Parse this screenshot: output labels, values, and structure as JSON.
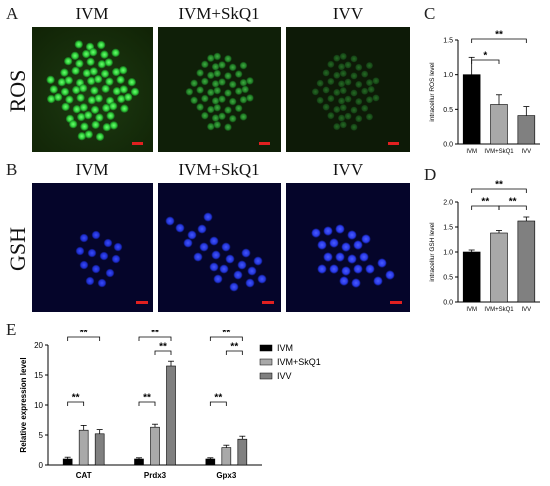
{
  "panels": {
    "A": "A",
    "B": "B",
    "C": "C",
    "D": "D",
    "E": "E"
  },
  "columns": [
    "IVM",
    "IVM+SkQ1",
    "IVV"
  ],
  "rows": [
    "ROS",
    "GSH"
  ],
  "colors": {
    "ros_green": "#2fcf3a",
    "gsh_blue": "#2838e8",
    "scale_bar": "#e02020",
    "bar_black": "#000000",
    "bar_light": "#a9a9a9",
    "bar_mid": "#808080"
  },
  "chart_data": [
    {
      "type": "bar",
      "panel": "C",
      "categories": [
        "IVM",
        "IVM+SkQ1",
        "IVV"
      ],
      "values": [
        1.0,
        0.57,
        0.41
      ],
      "errors": [
        0.25,
        0.14,
        0.13
      ],
      "ylabel": "intracellur ROS level",
      "ylim": [
        0,
        1.5
      ],
      "yticks": [
        "0.0",
        "0.5",
        "1.0",
        "1.5"
      ],
      "significance": [
        {
          "from": 0,
          "to": 1,
          "label": "*"
        },
        {
          "from": 0,
          "to": 2,
          "label": "**"
        }
      ]
    },
    {
      "type": "bar",
      "panel": "D",
      "categories": [
        "IVM",
        "IVM+SkQ1",
        "IVV"
      ],
      "values": [
        1.0,
        1.38,
        1.62
      ],
      "errors": [
        0.04,
        0.05,
        0.08
      ],
      "ylabel": "intracellur GSH level",
      "ylim": [
        0,
        2.0
      ],
      "yticks": [
        "0.0",
        "0.5",
        "1.0",
        "1.5",
        "2.0"
      ],
      "significance": [
        {
          "from": 0,
          "to": 1,
          "label": "**"
        },
        {
          "from": 1,
          "to": 2,
          "label": "**"
        },
        {
          "from": 0,
          "to": 2,
          "label": "**"
        }
      ]
    },
    {
      "type": "bar",
      "panel": "E",
      "categories": [
        "CAT",
        "Prdx3",
        "Gpx3"
      ],
      "series": [
        {
          "name": "IVM",
          "values": [
            1.0,
            1.0,
            1.0
          ],
          "errors": [
            0.3,
            0.2,
            0.2
          ]
        },
        {
          "name": "IVM+SkQ1",
          "values": [
            5.8,
            6.3,
            2.9
          ],
          "errors": [
            0.8,
            0.5,
            0.4
          ]
        },
        {
          "name": "IVV",
          "values": [
            5.2,
            16.5,
            4.3
          ],
          "errors": [
            0.7,
            0.8,
            0.5
          ]
        }
      ],
      "ylabel": "Relative expression level",
      "ylim": [
        0,
        20
      ],
      "yticks": [
        "0",
        "5",
        "10",
        "15",
        "20"
      ],
      "significance": [
        {
          "group": 0,
          "from": 0,
          "to": 1,
          "label": "**"
        },
        {
          "group": 0,
          "from": 0,
          "to": 2,
          "label": "**"
        },
        {
          "group": 1,
          "from": 0,
          "to": 1,
          "label": "**"
        },
        {
          "group": 1,
          "from": 1,
          "to": 2,
          "label": "**"
        },
        {
          "group": 1,
          "from": 0,
          "to": 2,
          "label": "**"
        },
        {
          "group": 2,
          "from": 0,
          "to": 1,
          "label": "**"
        },
        {
          "group": 2,
          "from": 1,
          "to": 2,
          "label": "**"
        },
        {
          "group": 2,
          "from": 0,
          "to": 2,
          "label": "**"
        }
      ],
      "legend": "right"
    }
  ]
}
